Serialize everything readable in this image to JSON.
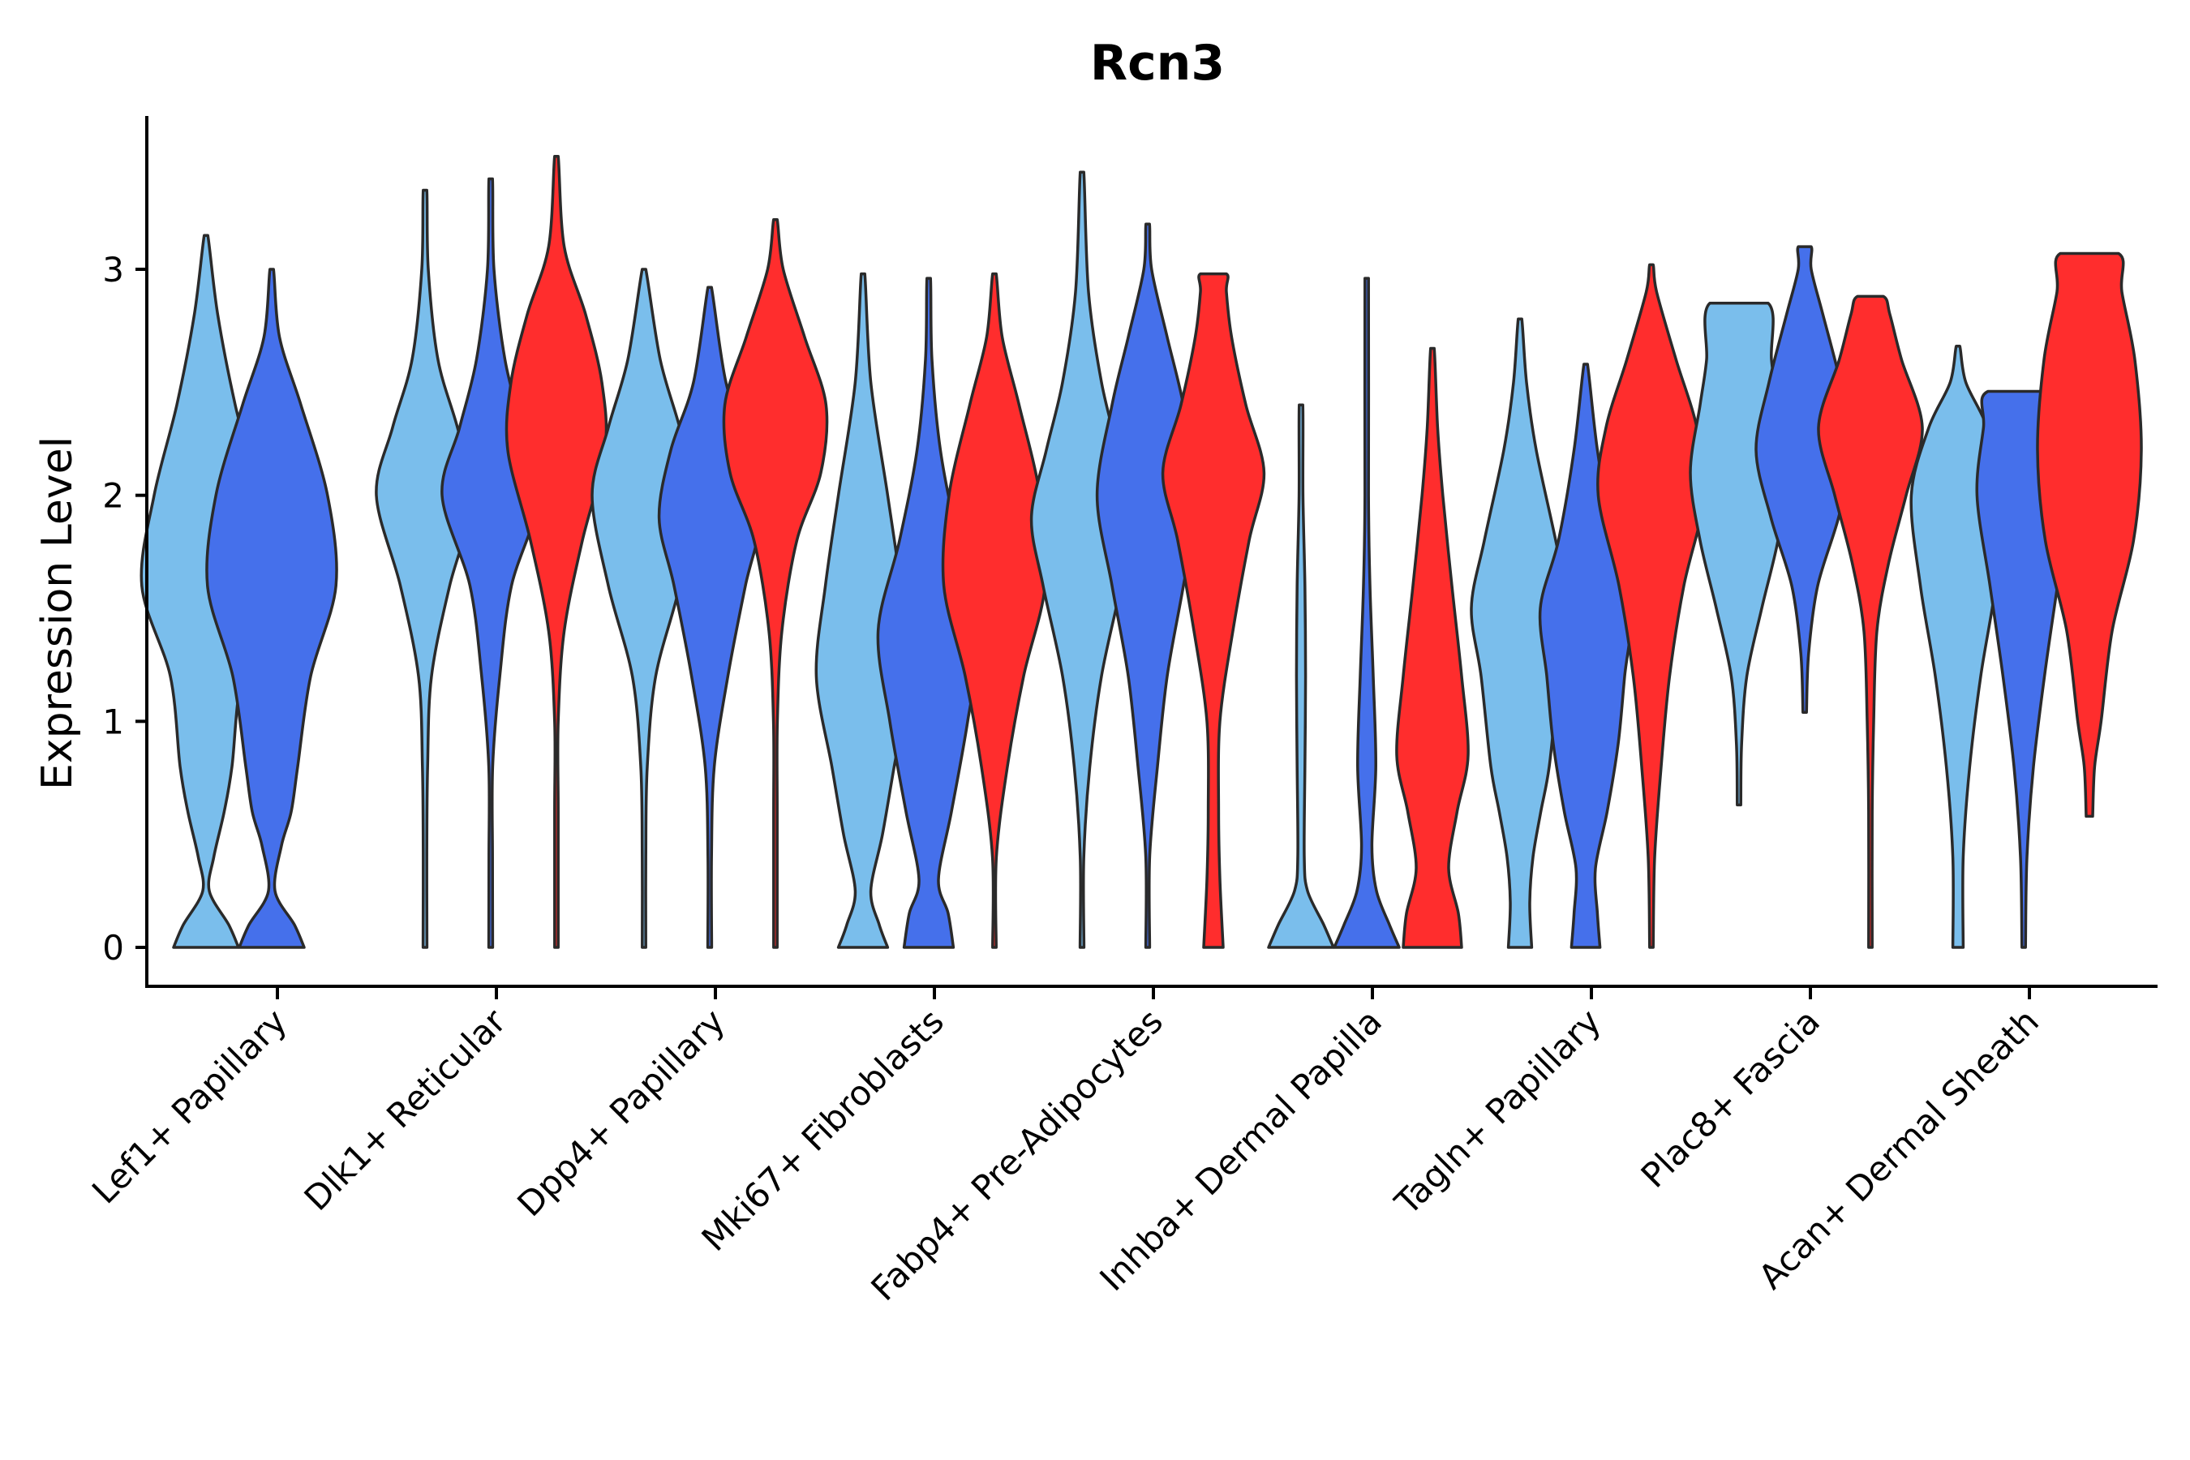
{
  "chart_data": {
    "type": "violin",
    "title": "Rcn3",
    "xlabel": "",
    "ylabel": "Expression Level",
    "ylim": [
      -0.18,
      3.7
    ],
    "yticks": [
      0,
      1,
      2,
      3
    ],
    "grid": false,
    "legend": "none",
    "groups": [
      "light",
      "medium",
      "red"
    ],
    "group_colors": {
      "light": "#7ABEEC",
      "medium": "#4570EB",
      "red": "#FF2D2D"
    },
    "categories": [
      "Lef1+ Papillary",
      "Dlk1+ Reticular",
      "Dpp4+ Papillary",
      "Mki67+ Fibroblasts",
      "Fabp4+ Pre-Adipocytes",
      "Inhba+ Dermal Papilla",
      "Tagln+ Papillary",
      "Plac8+ Fascia",
      "Acan+ Dermal Sheath"
    ],
    "violins": [
      {
        "category": "Lef1+ Papillary",
        "group": "light",
        "min": 0,
        "max": 3.15,
        "profile": [
          [
            0,
            0.5
          ],
          [
            0.1,
            0.35
          ],
          [
            0.25,
            0.05
          ],
          [
            0.4,
            0.12
          ],
          [
            0.6,
            0.28
          ],
          [
            0.8,
            0.4
          ],
          [
            1.2,
            0.55
          ],
          [
            1.6,
            0.99
          ],
          [
            2.0,
            0.8
          ],
          [
            2.4,
            0.45
          ],
          [
            2.8,
            0.18
          ],
          [
            3.15,
            0.0
          ]
        ]
      },
      {
        "category": "Lef1+ Papillary",
        "group": "medium",
        "min": 0,
        "max": 3.0,
        "profile": [
          [
            0,
            0.5
          ],
          [
            0.1,
            0.35
          ],
          [
            0.25,
            0.05
          ],
          [
            0.45,
            0.15
          ],
          [
            0.6,
            0.3
          ],
          [
            0.8,
            0.4
          ],
          [
            1.2,
            0.6
          ],
          [
            1.6,
            0.99
          ],
          [
            2.0,
            0.86
          ],
          [
            2.4,
            0.45
          ],
          [
            2.7,
            0.12
          ],
          [
            3.0,
            0.0
          ]
        ]
      },
      {
        "category": "Dlk1+ Reticular",
        "group": "light",
        "min": 0,
        "max": 3.35,
        "profile": [
          [
            0,
            0.03
          ],
          [
            0.4,
            0.01
          ],
          [
            0.8,
            0.04
          ],
          [
            1.2,
            0.1
          ],
          [
            1.6,
            0.38
          ],
          [
            2.0,
            0.75
          ],
          [
            2.3,
            0.5
          ],
          [
            2.6,
            0.2
          ],
          [
            3.0,
            0.05
          ],
          [
            3.35,
            0.0
          ]
        ]
      },
      {
        "category": "Dlk1+ Reticular",
        "group": "medium",
        "min": 0,
        "max": 3.4,
        "profile": [
          [
            0,
            0.03
          ],
          [
            0.4,
            0.01
          ],
          [
            0.8,
            0.03
          ],
          [
            1.2,
            0.14
          ],
          [
            1.6,
            0.32
          ],
          [
            2.0,
            0.75
          ],
          [
            2.3,
            0.48
          ],
          [
            2.6,
            0.22
          ],
          [
            3.0,
            0.05
          ],
          [
            3.4,
            0.0
          ]
        ]
      },
      {
        "category": "Dlk1+ Reticular",
        "group": "red",
        "min": 0,
        "max": 3.5,
        "profile": [
          [
            0,
            0.01
          ],
          [
            0.6,
            0.01
          ],
          [
            1.0,
            0.02
          ],
          [
            1.4,
            0.12
          ],
          [
            1.8,
            0.4
          ],
          [
            2.2,
            0.75
          ],
          [
            2.5,
            0.7
          ],
          [
            2.8,
            0.45
          ],
          [
            3.1,
            0.12
          ],
          [
            3.5,
            0.0
          ]
        ]
      },
      {
        "category": "Dpp4+ Papillary",
        "group": "light",
        "min": 0,
        "max": 3.0,
        "profile": [
          [
            0,
            0.01
          ],
          [
            0.4,
            0.02
          ],
          [
            0.8,
            0.05
          ],
          [
            1.2,
            0.18
          ],
          [
            1.6,
            0.55
          ],
          [
            2.0,
            0.8
          ],
          [
            2.3,
            0.55
          ],
          [
            2.6,
            0.25
          ],
          [
            3.0,
            0.0
          ]
        ]
      },
      {
        "category": "Dpp4+ Papillary",
        "group": "medium",
        "min": 0,
        "max": 2.92,
        "profile": [
          [
            0,
            0.03
          ],
          [
            0.4,
            0.01
          ],
          [
            0.8,
            0.07
          ],
          [
            1.2,
            0.28
          ],
          [
            1.6,
            0.55
          ],
          [
            1.9,
            0.78
          ],
          [
            2.2,
            0.6
          ],
          [
            2.5,
            0.25
          ],
          [
            2.92,
            0.0
          ]
        ]
      },
      {
        "category": "Dpp4+ Papillary",
        "group": "red",
        "min": 0,
        "max": 3.22,
        "profile": [
          [
            0,
            0.01
          ],
          [
            0.6,
            0.01
          ],
          [
            1.0,
            0.03
          ],
          [
            1.4,
            0.1
          ],
          [
            1.8,
            0.33
          ],
          [
            2.1,
            0.7
          ],
          [
            2.4,
            0.78
          ],
          [
            2.7,
            0.45
          ],
          [
            3.0,
            0.12
          ],
          [
            3.22,
            0.0
          ]
        ]
      },
      {
        "category": "Mki67+ Fibroblasts",
        "group": "light",
        "min": 0,
        "max": 2.98,
        "profile": [
          [
            0,
            0.38
          ],
          [
            0.1,
            0.25
          ],
          [
            0.25,
            0.12
          ],
          [
            0.5,
            0.3
          ],
          [
            0.8,
            0.48
          ],
          [
            1.2,
            0.72
          ],
          [
            1.6,
            0.58
          ],
          [
            2.0,
            0.38
          ],
          [
            2.5,
            0.12
          ],
          [
            2.98,
            0.0
          ]
        ]
      },
      {
        "category": "Mki67+ Fibroblasts",
        "group": "medium",
        "min": 0,
        "max": 2.96,
        "profile": [
          [
            0,
            0.38
          ],
          [
            0.15,
            0.3
          ],
          [
            0.3,
            0.15
          ],
          [
            0.6,
            0.35
          ],
          [
            1.0,
            0.6
          ],
          [
            1.4,
            0.78
          ],
          [
            1.8,
            0.45
          ],
          [
            2.2,
            0.18
          ],
          [
            2.6,
            0.05
          ],
          [
            2.96,
            0.0
          ]
        ]
      },
      {
        "category": "Mki67+ Fibroblasts",
        "group": "red",
        "min": 0,
        "max": 2.98,
        "profile": [
          [
            0,
            0.02
          ],
          [
            0.4,
            0.03
          ],
          [
            0.8,
            0.2
          ],
          [
            1.2,
            0.45
          ],
          [
            1.6,
            0.78
          ],
          [
            2.0,
            0.7
          ],
          [
            2.4,
            0.38
          ],
          [
            2.7,
            0.12
          ],
          [
            2.98,
            0.0
          ]
        ]
      },
      {
        "category": "Fabp4+ Pre-Adipocytes",
        "group": "light",
        "min": 0,
        "max": 3.43,
        "profile": [
          [
            0,
            0.03
          ],
          [
            0.4,
            0.02
          ],
          [
            0.8,
            0.12
          ],
          [
            1.2,
            0.3
          ],
          [
            1.6,
            0.6
          ],
          [
            1.9,
            0.78
          ],
          [
            2.2,
            0.55
          ],
          [
            2.5,
            0.3
          ],
          [
            2.9,
            0.1
          ],
          [
            3.43,
            0.0
          ]
        ]
      },
      {
        "category": "Fabp4+ Pre-Adipocytes",
        "group": "medium",
        "min": 0,
        "max": 3.2,
        "profile": [
          [
            0,
            0.03
          ],
          [
            0.4,
            0.03
          ],
          [
            0.8,
            0.15
          ],
          [
            1.2,
            0.3
          ],
          [
            1.6,
            0.55
          ],
          [
            2.0,
            0.78
          ],
          [
            2.4,
            0.55
          ],
          [
            2.7,
            0.3
          ],
          [
            3.0,
            0.06
          ],
          [
            3.2,
            0.0
          ]
        ]
      },
      {
        "category": "Fabp4+ Pre-Adipocytes",
        "group": "red",
        "min": 0,
        "max": 2.98,
        "profile": [
          [
            0,
            0.15
          ],
          [
            0.3,
            0.1
          ],
          [
            0.6,
            0.08
          ],
          [
            1.0,
            0.1
          ],
          [
            1.4,
            0.3
          ],
          [
            1.8,
            0.55
          ],
          [
            2.1,
            0.78
          ],
          [
            2.4,
            0.5
          ],
          [
            2.7,
            0.28
          ],
          [
            2.9,
            0.2
          ],
          [
            2.98,
            0.2
          ]
        ]
      },
      {
        "category": "Inhba+ Dermal Papilla",
        "group": "light",
        "min": 0,
        "max": 2.4,
        "profile": [
          [
            0,
            0.5
          ],
          [
            0.1,
            0.35
          ],
          [
            0.25,
            0.1
          ],
          [
            0.4,
            0.05
          ],
          [
            0.8,
            0.06
          ],
          [
            1.2,
            0.07
          ],
          [
            1.6,
            0.06
          ],
          [
            2.0,
            0.03
          ],
          [
            2.4,
            0.0
          ]
        ]
      },
      {
        "category": "Inhba+ Dermal Papilla",
        "group": "medium",
        "min": 0,
        "max": 2.96,
        "profile": [
          [
            0,
            0.5
          ],
          [
            0.1,
            0.35
          ],
          [
            0.25,
            0.15
          ],
          [
            0.45,
            0.08
          ],
          [
            0.8,
            0.14
          ],
          [
            1.2,
            0.1
          ],
          [
            1.6,
            0.05
          ],
          [
            2.0,
            0.02
          ],
          [
            2.96,
            0.0
          ]
        ]
      },
      {
        "category": "Inhba+ Dermal Papilla",
        "group": "red",
        "min": 0,
        "max": 2.65,
        "profile": [
          [
            0,
            0.45
          ],
          [
            0.15,
            0.4
          ],
          [
            0.35,
            0.25
          ],
          [
            0.6,
            0.38
          ],
          [
            0.85,
            0.55
          ],
          [
            1.2,
            0.45
          ],
          [
            1.6,
            0.3
          ],
          [
            2.0,
            0.16
          ],
          [
            2.3,
            0.08
          ],
          [
            2.65,
            0.0
          ]
        ]
      },
      {
        "category": "Tagln+ Papillary",
        "group": "light",
        "min": 0,
        "max": 2.78,
        "profile": [
          [
            0,
            0.18
          ],
          [
            0.2,
            0.15
          ],
          [
            0.4,
            0.2
          ],
          [
            0.6,
            0.32
          ],
          [
            0.8,
            0.45
          ],
          [
            1.2,
            0.6
          ],
          [
            1.5,
            0.75
          ],
          [
            1.8,
            0.55
          ],
          [
            2.2,
            0.25
          ],
          [
            2.5,
            0.1
          ],
          [
            2.78,
            0.0
          ]
        ]
      },
      {
        "category": "Tagln+ Papillary",
        "group": "medium",
        "min": 0,
        "max": 2.58,
        "profile": [
          [
            0,
            0.22
          ],
          [
            0.15,
            0.18
          ],
          [
            0.35,
            0.15
          ],
          [
            0.6,
            0.33
          ],
          [
            0.9,
            0.5
          ],
          [
            1.2,
            0.6
          ],
          [
            1.5,
            0.7
          ],
          [
            1.8,
            0.42
          ],
          [
            2.2,
            0.18
          ],
          [
            2.58,
            0.0
          ]
        ]
      },
      {
        "category": "Tagln+ Papillary",
        "group": "red",
        "min": 0,
        "max": 3.02,
        "profile": [
          [
            0,
            0.01
          ],
          [
            0.4,
            0.05
          ],
          [
            0.8,
            0.15
          ],
          [
            1.2,
            0.28
          ],
          [
            1.6,
            0.5
          ],
          [
            2.0,
            0.82
          ],
          [
            2.3,
            0.7
          ],
          [
            2.6,
            0.38
          ],
          [
            2.9,
            0.08
          ],
          [
            3.02,
            0.0
          ]
        ]
      },
      {
        "category": "Plac8+ Fascia",
        "group": "light",
        "min": 0.63,
        "max": 2.85,
        "profile": [
          [
            0.63,
            0.01
          ],
          [
            0.9,
            0.04
          ],
          [
            1.2,
            0.12
          ],
          [
            1.5,
            0.35
          ],
          [
            1.8,
            0.6
          ],
          [
            2.1,
            0.75
          ],
          [
            2.4,
            0.6
          ],
          [
            2.6,
            0.5
          ],
          [
            2.85,
            0.45
          ]
        ]
      },
      {
        "category": "Plac8+ Fascia",
        "group": "medium",
        "min": 1.04,
        "max": 3.1,
        "profile": [
          [
            1.04,
            0.01
          ],
          [
            1.3,
            0.06
          ],
          [
            1.6,
            0.2
          ],
          [
            1.9,
            0.52
          ],
          [
            2.2,
            0.75
          ],
          [
            2.5,
            0.55
          ],
          [
            2.8,
            0.28
          ],
          [
            3.0,
            0.1
          ],
          [
            3.1,
            0.1
          ]
        ]
      },
      {
        "category": "Plac8+ Fascia",
        "group": "red",
        "min": 0,
        "max": 2.88,
        "profile": [
          [
            0,
            0.01
          ],
          [
            0.6,
            0.02
          ],
          [
            1.0,
            0.05
          ],
          [
            1.4,
            0.1
          ],
          [
            1.7,
            0.28
          ],
          [
            2.0,
            0.55
          ],
          [
            2.3,
            0.8
          ],
          [
            2.6,
            0.48
          ],
          [
            2.8,
            0.3
          ],
          [
            2.88,
            0.2
          ]
        ]
      },
      {
        "category": "Acan+ Dermal Sheath",
        "group": "light",
        "min": 0,
        "max": 2.66,
        "profile": [
          [
            0,
            0.08
          ],
          [
            0.4,
            0.08
          ],
          [
            0.8,
            0.18
          ],
          [
            1.2,
            0.35
          ],
          [
            1.6,
            0.58
          ],
          [
            2.0,
            0.72
          ],
          [
            2.3,
            0.45
          ],
          [
            2.5,
            0.12
          ],
          [
            2.66,
            0.0
          ]
        ]
      },
      {
        "category": "Acan+ Dermal Sheath",
        "group": "medium",
        "min": 0,
        "max": 2.46,
        "profile": [
          [
            0,
            0.02
          ],
          [
            0.4,
            0.05
          ],
          [
            0.8,
            0.15
          ],
          [
            1.2,
            0.32
          ],
          [
            1.6,
            0.52
          ],
          [
            2.0,
            0.72
          ],
          [
            2.3,
            0.62
          ],
          [
            2.46,
            0.55
          ]
        ]
      },
      {
        "category": "Acan+ Dermal Sheath",
        "group": "red",
        "min": 0.58,
        "max": 3.07,
        "profile": [
          [
            0.58,
            0.05
          ],
          [
            0.8,
            0.08
          ],
          [
            1.0,
            0.18
          ],
          [
            1.4,
            0.35
          ],
          [
            1.8,
            0.68
          ],
          [
            2.2,
            0.8
          ],
          [
            2.6,
            0.7
          ],
          [
            2.9,
            0.5
          ],
          [
            3.07,
            0.45
          ]
        ]
      }
    ]
  }
}
